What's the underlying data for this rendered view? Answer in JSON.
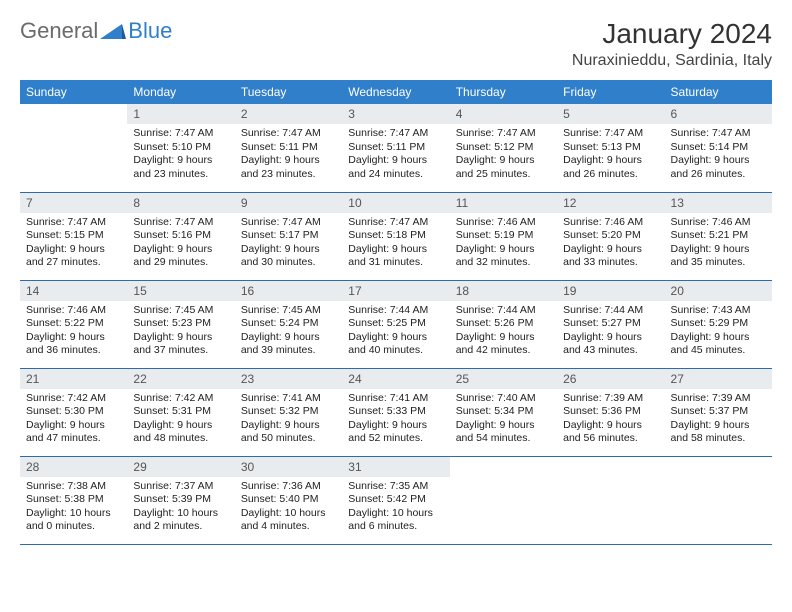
{
  "brand": {
    "part1": "General",
    "part2": "Blue"
  },
  "title": "January 2024",
  "location": "Nuraxinieddu, Sardinia, Italy",
  "colors": {
    "header_bg": "#2f7fca",
    "header_fg": "#ffffff",
    "daynum_bg": "#e9ecef",
    "row_border": "#2f6ba8",
    "page_bg": "#ffffff"
  },
  "weekdays": [
    "Sunday",
    "Monday",
    "Tuesday",
    "Wednesday",
    "Thursday",
    "Friday",
    "Saturday"
  ],
  "grid": {
    "rows": 5,
    "cols": 7,
    "start_offset": 1,
    "days_in_month": 31
  },
  "days": {
    "1": {
      "sunrise": "7:47 AM",
      "sunset": "5:10 PM",
      "daylight": "9 hours and 23 minutes."
    },
    "2": {
      "sunrise": "7:47 AM",
      "sunset": "5:11 PM",
      "daylight": "9 hours and 23 minutes."
    },
    "3": {
      "sunrise": "7:47 AM",
      "sunset": "5:11 PM",
      "daylight": "9 hours and 24 minutes."
    },
    "4": {
      "sunrise": "7:47 AM",
      "sunset": "5:12 PM",
      "daylight": "9 hours and 25 minutes."
    },
    "5": {
      "sunrise": "7:47 AM",
      "sunset": "5:13 PM",
      "daylight": "9 hours and 26 minutes."
    },
    "6": {
      "sunrise": "7:47 AM",
      "sunset": "5:14 PM",
      "daylight": "9 hours and 26 minutes."
    },
    "7": {
      "sunrise": "7:47 AM",
      "sunset": "5:15 PM",
      "daylight": "9 hours and 27 minutes."
    },
    "8": {
      "sunrise": "7:47 AM",
      "sunset": "5:16 PM",
      "daylight": "9 hours and 29 minutes."
    },
    "9": {
      "sunrise": "7:47 AM",
      "sunset": "5:17 PM",
      "daylight": "9 hours and 30 minutes."
    },
    "10": {
      "sunrise": "7:47 AM",
      "sunset": "5:18 PM",
      "daylight": "9 hours and 31 minutes."
    },
    "11": {
      "sunrise": "7:46 AM",
      "sunset": "5:19 PM",
      "daylight": "9 hours and 32 minutes."
    },
    "12": {
      "sunrise": "7:46 AM",
      "sunset": "5:20 PM",
      "daylight": "9 hours and 33 minutes."
    },
    "13": {
      "sunrise": "7:46 AM",
      "sunset": "5:21 PM",
      "daylight": "9 hours and 35 minutes."
    },
    "14": {
      "sunrise": "7:46 AM",
      "sunset": "5:22 PM",
      "daylight": "9 hours and 36 minutes."
    },
    "15": {
      "sunrise": "7:45 AM",
      "sunset": "5:23 PM",
      "daylight": "9 hours and 37 minutes."
    },
    "16": {
      "sunrise": "7:45 AM",
      "sunset": "5:24 PM",
      "daylight": "9 hours and 39 minutes."
    },
    "17": {
      "sunrise": "7:44 AM",
      "sunset": "5:25 PM",
      "daylight": "9 hours and 40 minutes."
    },
    "18": {
      "sunrise": "7:44 AM",
      "sunset": "5:26 PM",
      "daylight": "9 hours and 42 minutes."
    },
    "19": {
      "sunrise": "7:44 AM",
      "sunset": "5:27 PM",
      "daylight": "9 hours and 43 minutes."
    },
    "20": {
      "sunrise": "7:43 AM",
      "sunset": "5:29 PM",
      "daylight": "9 hours and 45 minutes."
    },
    "21": {
      "sunrise": "7:42 AM",
      "sunset": "5:30 PM",
      "daylight": "9 hours and 47 minutes."
    },
    "22": {
      "sunrise": "7:42 AM",
      "sunset": "5:31 PM",
      "daylight": "9 hours and 48 minutes."
    },
    "23": {
      "sunrise": "7:41 AM",
      "sunset": "5:32 PM",
      "daylight": "9 hours and 50 minutes."
    },
    "24": {
      "sunrise": "7:41 AM",
      "sunset": "5:33 PM",
      "daylight": "9 hours and 52 minutes."
    },
    "25": {
      "sunrise": "7:40 AM",
      "sunset": "5:34 PM",
      "daylight": "9 hours and 54 minutes."
    },
    "26": {
      "sunrise": "7:39 AM",
      "sunset": "5:36 PM",
      "daylight": "9 hours and 56 minutes."
    },
    "27": {
      "sunrise": "7:39 AM",
      "sunset": "5:37 PM",
      "daylight": "9 hours and 58 minutes."
    },
    "28": {
      "sunrise": "7:38 AM",
      "sunset": "5:38 PM",
      "daylight": "10 hours and 0 minutes."
    },
    "29": {
      "sunrise": "7:37 AM",
      "sunset": "5:39 PM",
      "daylight": "10 hours and 2 minutes."
    },
    "30": {
      "sunrise": "7:36 AM",
      "sunset": "5:40 PM",
      "daylight": "10 hours and 4 minutes."
    },
    "31": {
      "sunrise": "7:35 AM",
      "sunset": "5:42 PM",
      "daylight": "10 hours and 6 minutes."
    }
  },
  "labels": {
    "sunrise_prefix": "Sunrise: ",
    "sunset_prefix": "Sunset: ",
    "daylight_prefix": "Daylight: "
  }
}
